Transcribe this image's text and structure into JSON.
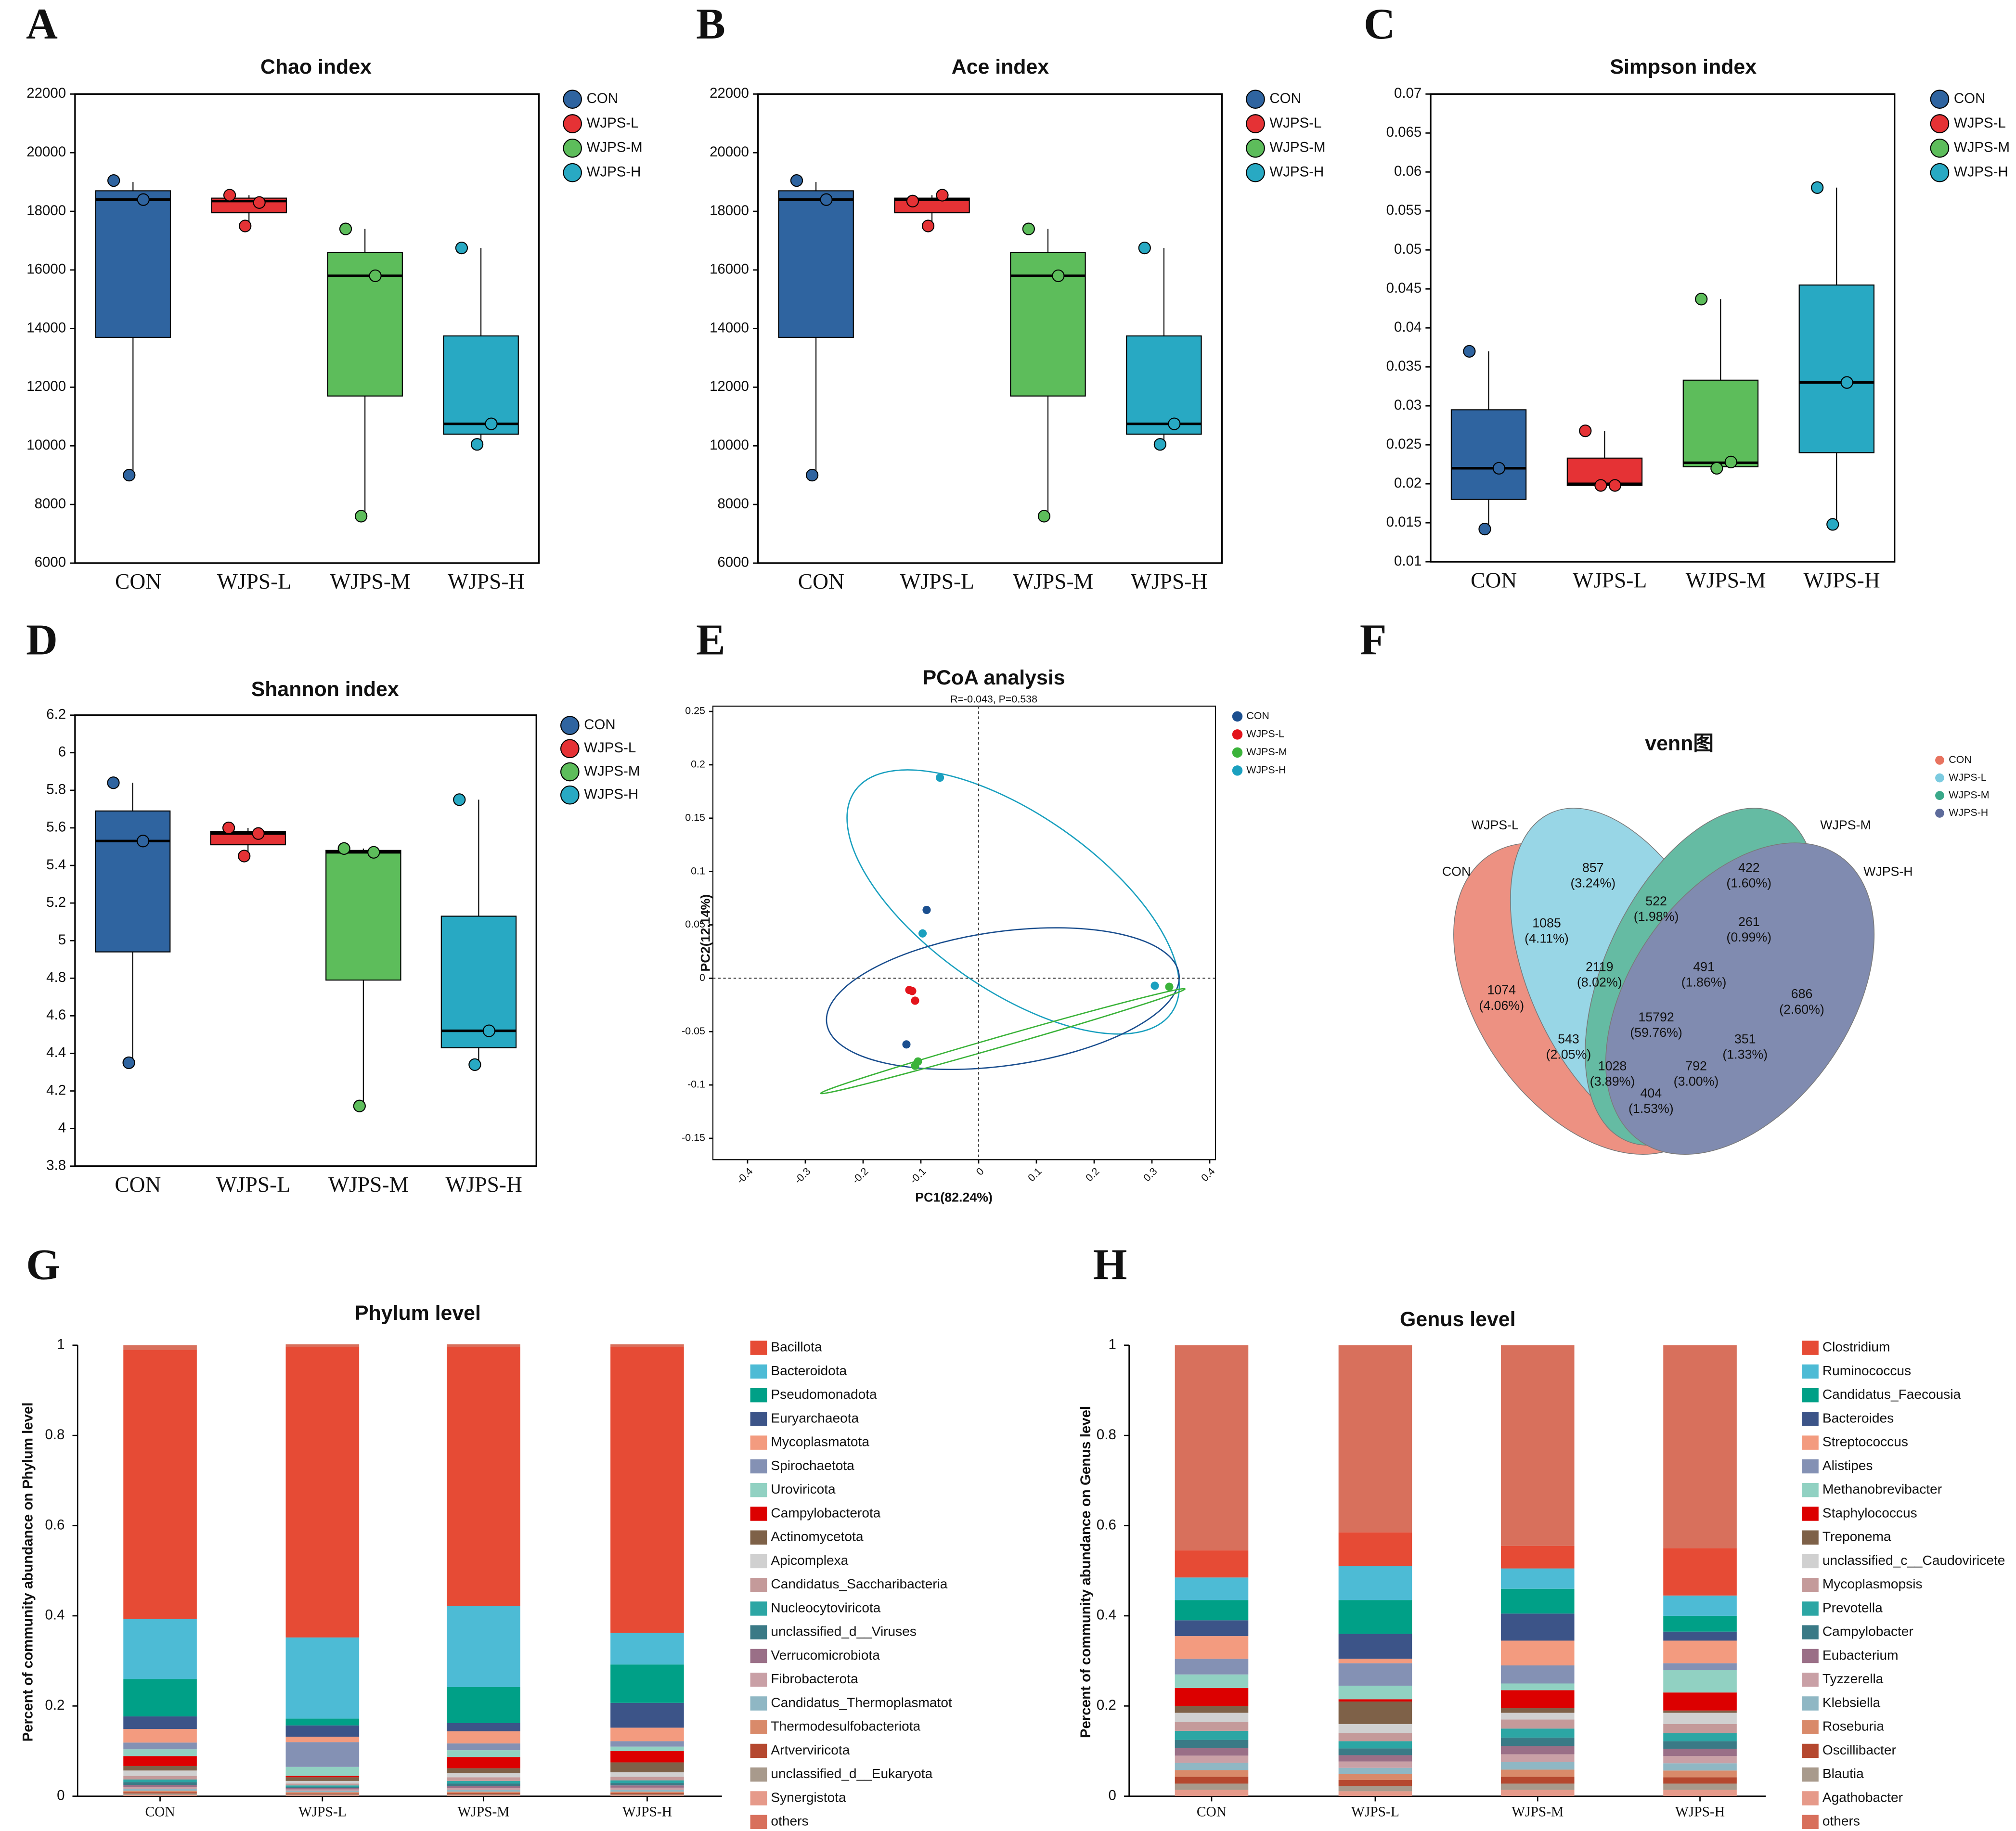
{
  "chart_data": [
    {
      "type": "box",
      "panel": "A",
      "title": "Chao index",
      "ylim": [
        6000,
        22000
      ],
      "yticks": [
        6000,
        8000,
        10000,
        12000,
        14000,
        16000,
        18000,
        20000,
        22000
      ],
      "series": [
        {
          "name": "CON",
          "color": "#2f64a0",
          "min": 9000,
          "q1": 13700,
          "median": 18400,
          "q3": 18700,
          "max": 19000,
          "points": [
            19050,
            18400,
            9000
          ]
        },
        {
          "name": "WJPS-L",
          "color": "#e53235",
          "min": 17500,
          "q1": 17950,
          "median": 18350,
          "q3": 18450,
          "max": 18550,
          "points": [
            18550,
            18300,
            17500
          ]
        },
        {
          "name": "WJPS-M",
          "color": "#5dbd5b",
          "min": 7600,
          "q1": 11700,
          "median": 15800,
          "q3": 16600,
          "max": 17400,
          "points": [
            17400,
            15800,
            7600
          ]
        },
        {
          "name": "WJPS-H",
          "color": "#28a9c3",
          "min": 10050,
          "q1": 10400,
          "median": 10750,
          "q3": 13750,
          "max": 16750,
          "points": [
            16750,
            10750,
            10050
          ]
        }
      ]
    },
    {
      "type": "box",
      "panel": "B",
      "title": "Ace index",
      "ylim": [
        6000,
        22000
      ],
      "yticks": [
        6000,
        8000,
        10000,
        12000,
        14000,
        16000,
        18000,
        20000,
        22000
      ],
      "series": [
        {
          "name": "CON",
          "color": "#2f64a0",
          "min": 9000,
          "q1": 13700,
          "median": 18400,
          "q3": 18700,
          "max": 19000,
          "points": [
            19050,
            18400,
            9000
          ]
        },
        {
          "name": "WJPS-L",
          "color": "#e53235",
          "min": 17500,
          "q1": 17950,
          "median": 18400,
          "q3": 18450,
          "max": 18550,
          "points": [
            18350,
            18550,
            17500
          ]
        },
        {
          "name": "WJPS-M",
          "color": "#5dbd5b",
          "min": 7600,
          "q1": 11700,
          "median": 15800,
          "q3": 16600,
          "max": 17400,
          "points": [
            17400,
            15800,
            7600
          ]
        },
        {
          "name": "WJPS-H",
          "color": "#28a9c3",
          "min": 10050,
          "q1": 10400,
          "median": 10750,
          "q3": 13750,
          "max": 16750,
          "points": [
            16750,
            10750,
            10050
          ]
        }
      ]
    },
    {
      "type": "box",
      "panel": "C",
      "title": "Simpson index",
      "ylim": [
        0.01,
        0.07
      ],
      "yticks": [
        0.01,
        0.015,
        0.02,
        0.025,
        0.03,
        0.035,
        0.04,
        0.045,
        0.05,
        0.055,
        0.06,
        0.065,
        0.07
      ],
      "series": [
        {
          "name": "CON",
          "color": "#2f64a0",
          "min": 0.0143,
          "q1": 0.018,
          "median": 0.022,
          "q3": 0.0295,
          "max": 0.037,
          "points": [
            0.037,
            0.022,
            0.0142
          ]
        },
        {
          "name": "WJPS-L",
          "color": "#e53235",
          "min": 0.0198,
          "q1": 0.0198,
          "median": 0.02,
          "q3": 0.0233,
          "max": 0.0268,
          "points": [
            0.0268,
            0.0198,
            0.0198
          ]
        },
        {
          "name": "WJPS-M",
          "color": "#5dbd5b",
          "min": 0.022,
          "q1": 0.0222,
          "median": 0.0227,
          "q3": 0.0333,
          "max": 0.0437,
          "points": [
            0.0437,
            0.0228,
            0.022
          ]
        },
        {
          "name": "WJPS-H",
          "color": "#28a9c3",
          "min": 0.0148,
          "q1": 0.024,
          "median": 0.033,
          "q3": 0.0455,
          "max": 0.058,
          "points": [
            0.058,
            0.033,
            0.0148
          ]
        }
      ]
    },
    {
      "type": "box",
      "panel": "D",
      "title": "Shannon index",
      "ylim": [
        3.8,
        6.2
      ],
      "yticks": [
        3.8,
        4,
        4.2,
        4.4,
        4.6,
        4.8,
        5,
        5.2,
        5.4,
        5.6,
        5.8,
        6,
        6.2
      ],
      "series": [
        {
          "name": "CON",
          "color": "#2f64a0",
          "min": 4.35,
          "q1": 4.94,
          "median": 5.53,
          "q3": 5.69,
          "max": 5.84,
          "points": [
            5.84,
            5.53,
            4.35
          ]
        },
        {
          "name": "WJPS-L",
          "color": "#e53235",
          "min": 5.45,
          "q1": 5.51,
          "median": 5.57,
          "q3": 5.58,
          "max": 5.6,
          "points": [
            5.6,
            5.57,
            5.45
          ]
        },
        {
          "name": "WJPS-M",
          "color": "#5dbd5b",
          "min": 4.12,
          "q1": 4.79,
          "median": 5.47,
          "q3": 5.48,
          "max": 5.49,
          "points": [
            5.49,
            5.47,
            4.12
          ]
        },
        {
          "name": "WJPS-H",
          "color": "#28a9c3",
          "min": 4.34,
          "q1": 4.43,
          "median": 4.52,
          "q3": 5.13,
          "max": 5.75,
          "points": [
            5.75,
            4.52,
            4.34
          ]
        }
      ]
    },
    {
      "type": "scatter",
      "panel": "E",
      "title": "PCoA analysis",
      "subtitle": "R=-0.043, P=0.538",
      "xlabel": "PC1(82.24%)",
      "ylabel": "PC2(12.14%)",
      "xlim": [
        -0.46,
        0.41
      ],
      "xticks": [
        -0.4,
        -0.3,
        -0.2,
        -0.1,
        0,
        0.1,
        0.2,
        0.3,
        0.4
      ],
      "ylim": [
        -0.17,
        0.255
      ],
      "yticks": [
        -0.15,
        -0.1,
        -0.05,
        0,
        0.05,
        0.1,
        0.15,
        0.2,
        0.25
      ],
      "series": [
        {
          "name": "CON",
          "color": "#1b4f8f",
          "x": [
            -0.09,
            -0.125
          ],
          "y": [
            0.064,
            -0.062
          ]
        },
        {
          "name": "WJPS-L",
          "color": "#e3141c",
          "x": [
            -0.12,
            -0.115,
            -0.11
          ],
          "y": [
            -0.011,
            -0.012,
            -0.021
          ]
        },
        {
          "name": "WJPS-M",
          "color": "#3bb33a",
          "x": [
            -0.11,
            -0.105,
            0.33
          ],
          "y": [
            -0.082,
            -0.078,
            -0.008
          ]
        },
        {
          "name": "WJPS-H",
          "color": "#1aa0bf",
          "x": [
            -0.067,
            -0.097,
            0.305
          ],
          "y": [
            0.188,
            0.042,
            -0.007
          ]
        }
      ]
    },
    {
      "type": "venn",
      "panel": "F",
      "title": "venn图",
      "sets": [
        {
          "name": "CON",
          "color": "#e8735f"
        },
        {
          "name": "WJPS-L",
          "color": "#7ccbe0"
        },
        {
          "name": "WJPS-M",
          "color": "#3aa98a"
        },
        {
          "name": "WJPS-H",
          "color": "#5d6b9b"
        }
      ],
      "values": [
        857,
        422,
        1085,
        522,
        261,
        2119,
        491,
        1074,
        686,
        15792,
        543,
        351,
        1028,
        792,
        404
      ],
      "percent_labels": [
        "(3.24%)",
        "(1.60%)",
        "(4.11%)",
        "(1.98%)",
        "(0.99%)",
        "(8.02%)",
        "(1.86%)",
        "(4.06%)",
        "(2.60%)",
        "(59.76%)",
        "(2.05%)",
        "(1.33%)",
        "(3.89%)",
        "(3.00%)",
        "(1.53%)"
      ]
    },
    {
      "type": "stacked_bar",
      "panel": "G",
      "title": "Phylum level",
      "ylabel": "Percent of community abundance on Phylum level",
      "categories": [
        "CON",
        "WJPS-L",
        "WJPS-M",
        "WJPS-H"
      ],
      "ylim": [
        0,
        1
      ],
      "yticks": [
        0,
        0.2,
        0.4,
        0.6,
        0.8,
        1
      ],
      "series": [
        {
          "name": "Bacillota",
          "color": "#e64b35",
          "values": [
            0.597,
            0.645,
            0.575,
            0.635
          ]
        },
        {
          "name": "Bacteroidota",
          "color": "#4dbbd5",
          "values": [
            0.133,
            0.18,
            0.18,
            0.07
          ]
        },
        {
          "name": "Pseudomonadota",
          "color": "#00a087",
          "values": [
            0.083,
            0.015,
            0.08,
            0.085
          ]
        },
        {
          "name": "Euryarchaeota",
          "color": "#3c5488",
          "values": [
            0.028,
            0.025,
            0.018,
            0.055
          ]
        },
        {
          "name": "Mycoplasmatota",
          "color": "#f39b7f",
          "values": [
            0.03,
            0.012,
            0.027,
            0.03
          ]
        },
        {
          "name": "Spirochaetota",
          "color": "#8491b4",
          "values": [
            0.015,
            0.055,
            0.015,
            0.012
          ]
        },
        {
          "name": "Uroviricota",
          "color": "#91d1c2",
          "values": [
            0.015,
            0.02,
            0.015,
            0.01
          ]
        },
        {
          "name": "Campylobacterota",
          "color": "#dc0000",
          "values": [
            0.022,
            0.003,
            0.025,
            0.025
          ]
        },
        {
          "name": "Actinomycetota",
          "color": "#7e6148",
          "values": [
            0.01,
            0.008,
            0.01,
            0.022
          ]
        },
        {
          "name": "Apicomplexa",
          "color": "#d0d0d0",
          "values": [
            0.012,
            0.006,
            0.01,
            0.01
          ]
        },
        {
          "name": "Candidatus_Saccharibacteria",
          "color": "#c49a9a",
          "values": [
            0.008,
            0.004,
            0.008,
            0.008
          ]
        },
        {
          "name": "Nucleocytoviricota",
          "color": "#2ca6a4",
          "values": [
            0.006,
            0.003,
            0.006,
            0.006
          ]
        },
        {
          "name": "unclassified_d__Viruses",
          "color": "#3a7a86",
          "values": [
            0.006,
            0.003,
            0.005,
            0.005
          ]
        },
        {
          "name": "Verrucomicrobiota",
          "color": "#9a6f87",
          "values": [
            0.005,
            0.003,
            0.005,
            0.005
          ]
        },
        {
          "name": "Fibrobacterota",
          "color": "#c9a0a6",
          "values": [
            0.004,
            0.003,
            0.004,
            0.005
          ]
        },
        {
          "name": "Candidatus_Thermoplasmatot",
          "color": "#8fb7c4",
          "values": [
            0.004,
            0.003,
            0.004,
            0.004
          ]
        },
        {
          "name": "Thermodesulfobacteriota",
          "color": "#d98a6a",
          "values": [
            0.003,
            0.003,
            0.003,
            0.003
          ]
        },
        {
          "name": "Artverviricota",
          "color": "#b5482f",
          "values": [
            0.003,
            0.002,
            0.003,
            0.003
          ]
        },
        {
          "name": "unclassified_d__Eukaryota",
          "color": "#a89a8c",
          "values": [
            0.003,
            0.002,
            0.002,
            0.002
          ]
        },
        {
          "name": "Synergistota",
          "color": "#e69a8a",
          "values": [
            0.003,
            0.002,
            0.002,
            0.002
          ]
        },
        {
          "name": "others",
          "color": "#d8705c",
          "values": [
            0.01,
            0.005,
            0.005,
            0.005
          ]
        }
      ]
    },
    {
      "type": "stacked_bar",
      "panel": "H",
      "title": "Genus level",
      "ylabel": "Percent of community abundance on Genus level",
      "categories": [
        "CON",
        "WJPS-L",
        "WJPS-M",
        "WJPS-H"
      ],
      "ylim": [
        0,
        1
      ],
      "yticks": [
        0,
        0.2,
        0.4,
        0.6,
        0.8,
        1
      ],
      "series": [
        {
          "name": "Clostridium",
          "color": "#e64b35",
          "values": [
            0.06,
            0.075,
            0.05,
            0.105
          ]
        },
        {
          "name": "Ruminococcus",
          "color": "#4dbbd5",
          "values": [
            0.05,
            0.075,
            0.045,
            0.045
          ]
        },
        {
          "name": "Candidatus_Faecousia",
          "color": "#00a087",
          "values": [
            0.045,
            0.075,
            0.055,
            0.035
          ]
        },
        {
          "name": "Bacteroides",
          "color": "#3c5488",
          "values": [
            0.035,
            0.055,
            0.06,
            0.02
          ]
        },
        {
          "name": "Streptococcus",
          "color": "#f39b7f",
          "values": [
            0.05,
            0.01,
            0.055,
            0.05
          ]
        },
        {
          "name": "Alistipes",
          "color": "#8491b4",
          "values": [
            0.035,
            0.05,
            0.04,
            0.015
          ]
        },
        {
          "name": "Methanobrevibacter",
          "color": "#91d1c2",
          "values": [
            0.03,
            0.03,
            0.015,
            0.05
          ]
        },
        {
          "name": "Staphylococcus",
          "color": "#dc0000",
          "values": [
            0.04,
            0.005,
            0.04,
            0.04
          ]
        },
        {
          "name": "Treponema",
          "color": "#7e6148",
          "values": [
            0.015,
            0.05,
            0.01,
            0.005
          ]
        },
        {
          "name": "unclassified_c__Caudoviricete",
          "color": "#d0d0d0",
          "values": [
            0.02,
            0.02,
            0.015,
            0.025
          ]
        },
        {
          "name": "Mycoplasmopsis",
          "color": "#c49a9a",
          "values": [
            0.02,
            0.018,
            0.02,
            0.02
          ]
        },
        {
          "name": "Prevotella",
          "color": "#2ca6a4",
          "values": [
            0.02,
            0.016,
            0.02,
            0.018
          ]
        },
        {
          "name": "Campylobacter",
          "color": "#3a7a86",
          "values": [
            0.018,
            0.015,
            0.019,
            0.017
          ]
        },
        {
          "name": "Eubacterium",
          "color": "#9a6f87",
          "values": [
            0.017,
            0.014,
            0.018,
            0.016
          ]
        },
        {
          "name": "Tyzzerella",
          "color": "#c9a0a6",
          "values": [
            0.016,
            0.014,
            0.017,
            0.016
          ]
        },
        {
          "name": "Klebsiella",
          "color": "#8fb7c4",
          "values": [
            0.016,
            0.014,
            0.017,
            0.016
          ]
        },
        {
          "name": "Roseburia",
          "color": "#d98a6a",
          "values": [
            0.015,
            0.013,
            0.016,
            0.015
          ]
        },
        {
          "name": "Oscillibacter",
          "color": "#b5482f",
          "values": [
            0.015,
            0.013,
            0.015,
            0.014
          ]
        },
        {
          "name": "Blautia",
          "color": "#a89a8c",
          "values": [
            0.014,
            0.012,
            0.014,
            0.014
          ]
        },
        {
          "name": "Agathobacter",
          "color": "#e69a8a",
          "values": [
            0.014,
            0.011,
            0.014,
            0.014
          ]
        },
        {
          "name": "others",
          "color": "#d8705c",
          "values": [
            0.455,
            0.415,
            0.445,
            0.45
          ]
        }
      ]
    }
  ]
}
